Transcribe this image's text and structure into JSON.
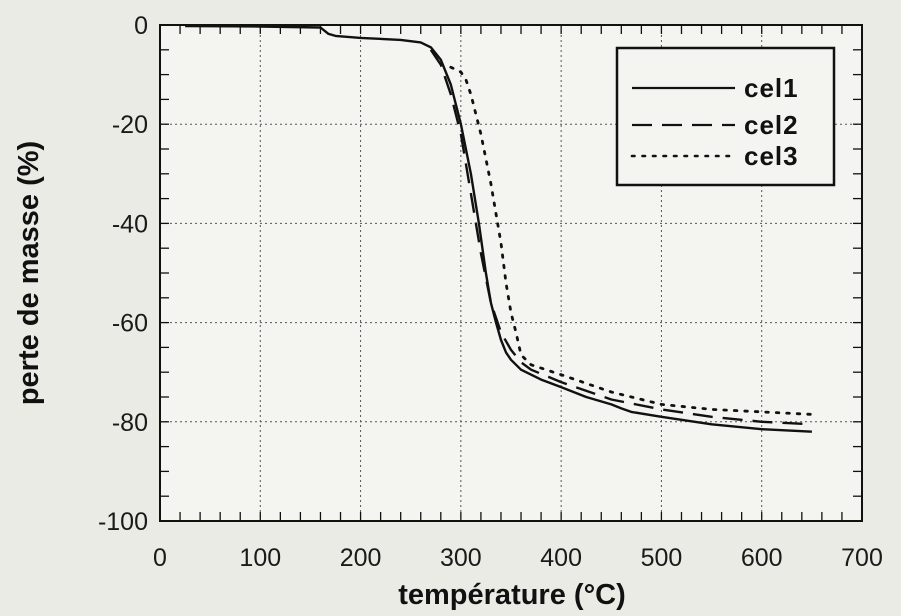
{
  "chart_data": {
    "type": "line",
    "title": "",
    "xlabel": "température  (°C)",
    "ylabel": "perte de masse (%)",
    "xlim": [
      0,
      700
    ],
    "ylim": [
      -100,
      0
    ],
    "xticks": [
      0,
      100,
      200,
      300,
      400,
      500,
      600,
      700
    ],
    "yticks": [
      0,
      -20,
      -40,
      -60,
      -80,
      -100
    ],
    "grid": true,
    "legend": "top-right",
    "series": [
      {
        "name": "cel1",
        "style": "solid",
        "x": [
          25,
          100,
          160,
          168,
          175,
          200,
          240,
          260,
          270,
          280,
          290,
          300,
          310,
          318,
          325,
          330,
          335,
          340,
          345,
          350,
          360,
          380,
          400,
          425,
          450,
          460,
          470,
          500,
          550,
          600,
          650
        ],
        "y": [
          -0.2,
          -0.3,
          -0.5,
          -1.8,
          -2.2,
          -2.6,
          -3.0,
          -3.5,
          -4.5,
          -7.0,
          -12.0,
          -20.0,
          -30.0,
          -40.0,
          -50.0,
          -56.0,
          -60.0,
          -63.5,
          -66.0,
          -67.5,
          -69.5,
          -71.5,
          -73.0,
          -75.0,
          -76.5,
          -77.3,
          -78.0,
          -79.0,
          -80.5,
          -81.5,
          -82.0
        ]
      },
      {
        "name": "cel2",
        "style": "dashed",
        "x": [
          270,
          280,
          290,
          300,
          310,
          320,
          330,
          340,
          350,
          360,
          370,
          400,
          450,
          500,
          550,
          600,
          650
        ],
        "y": [
          -5.0,
          -8.0,
          -14.0,
          -22.0,
          -34.0,
          -46.0,
          -56.0,
          -62.0,
          -65.5,
          -68.0,
          -69.5,
          -72.0,
          -75.5,
          -77.5,
          -79.0,
          -80.0,
          -80.5
        ]
      },
      {
        "name": "cel3",
        "style": "dotted",
        "x": [
          290,
          300,
          305,
          310,
          320,
          330,
          340,
          345,
          350,
          355,
          360,
          370,
          400,
          450,
          500,
          550,
          600,
          650
        ],
        "y": [
          -8.5,
          -9.5,
          -11.0,
          -14.0,
          -22.0,
          -32.0,
          -44.0,
          -52.0,
          -58.0,
          -62.0,
          -66.5,
          -68.5,
          -70.5,
          -74.0,
          -76.5,
          -77.5,
          -78.0,
          -78.5
        ]
      }
    ]
  },
  "colors": {
    "background": "#ebebe6",
    "plot_background": "#f4f4f0",
    "line": "#111111",
    "grid": "#555555"
  }
}
